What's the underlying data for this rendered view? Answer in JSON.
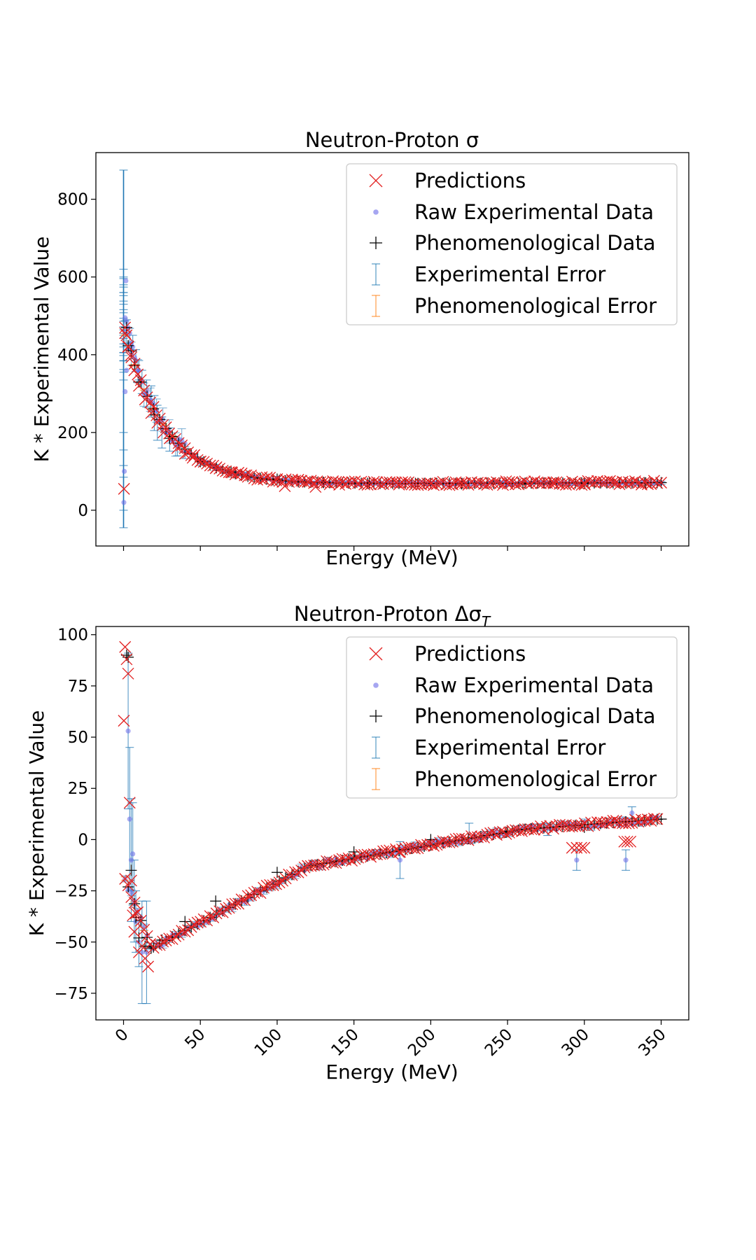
{
  "chart_data": [
    {
      "type": "scatter",
      "title": "Neutron-Proton σ",
      "xlabel": "Energy (MeV)",
      "ylabel": "K * Experimental Value",
      "xlim": [
        -18,
        368
      ],
      "ylim": [
        -92,
        920
      ],
      "yticks": [
        0,
        200,
        400,
        600,
        800
      ],
      "xticks": [
        0,
        50,
        100,
        150,
        200,
        250,
        300,
        350
      ],
      "show_xtick_labels": false,
      "grid": false,
      "legend_position": "top-right",
      "legend": [
        "Predictions",
        "Raw Experimental Data",
        "Phenomenological Data",
        "Experimental Error",
        "Phenomenological Error"
      ],
      "colors": {
        "predictions": "#e32222",
        "raw": "#6a6ae8",
        "phenom": "#000000",
        "exp_error": "#1f77b4",
        "phenom_error": "#ff7f0e"
      },
      "curve": "sigma",
      "series": [
        {
          "name": "Predictions",
          "x": [
            0.3,
            1,
            2,
            3,
            5,
            7,
            10,
            14,
            18,
            22,
            26,
            30,
            35,
            40,
            45,
            50,
            60,
            70,
            80,
            90,
            100,
            105,
            110,
            120,
            125,
            140,
            160,
            180,
            200,
            220,
            250,
            280,
            300,
            320,
            340,
            350
          ],
          "y": [
            55,
            470,
            450,
            420,
            400,
            360,
            320,
            285,
            250,
            225,
            200,
            185,
            160,
            145,
            135,
            125,
            108,
            98,
            90,
            85,
            80,
            62,
            76,
            73,
            60,
            72,
            70,
            69,
            68,
            68,
            68,
            69,
            69,
            70,
            70,
            71
          ]
        },
        {
          "name": "Raw Experimental Data",
          "x": [
            0.2,
            0.5,
            1,
            1,
            1.5,
            2,
            2,
            3,
            4,
            5,
            6,
            8,
            10,
            12,
            15,
            18,
            20,
            22,
            25,
            28,
            32,
            36,
            40,
            50,
            60,
            80,
            100,
            130,
            160,
            200,
            250,
            300,
            350
          ],
          "y": [
            20,
            100,
            305,
            495,
            590,
            485,
            360,
            470,
            455,
            430,
            420,
            385,
            360,
            330,
            300,
            280,
            255,
            230,
            210,
            200,
            180,
            165,
            150,
            125,
            110,
            92,
            82,
            74,
            70,
            68,
            67,
            69,
            70
          ]
        },
        {
          "name": "Phenomenological Data",
          "x": [
            2,
            5,
            10,
            20,
            30,
            50,
            70,
            100,
            130,
            160,
            190,
            220,
            260,
            300,
            340,
            350
          ],
          "y": [
            470,
            410,
            330,
            245,
            185,
            125,
            98,
            80,
            72,
            70,
            69,
            68,
            68,
            69,
            70,
            71
          ]
        },
        {
          "name": "Experimental Error",
          "x": [
            0,
            0,
            0,
            0,
            0,
            0,
            0,
            0,
            2,
            4,
            6,
            8,
            10,
            12,
            15,
            18,
            20,
            22,
            25,
            30,
            35,
            40,
            50,
            60,
            80,
            100,
            150,
            200,
            250,
            300,
            350
          ],
          "y": [
            20,
            100,
            305,
            495,
            600,
            580,
            380,
            360,
            460,
            440,
            420,
            385,
            360,
            330,
            300,
            280,
            250,
            225,
            200,
            182,
            160,
            148,
            125,
            110,
            92,
            82,
            71,
            68,
            67,
            69,
            70
          ],
          "err": [
            65,
            100,
            150,
            380,
            20,
            20,
            25,
            25,
            30,
            28,
            30,
            28,
            25,
            30,
            35,
            40,
            45,
            45,
            40,
            30,
            20,
            15,
            10,
            8,
            6,
            5,
            4,
            4,
            4,
            4,
            4
          ]
        }
      ]
    },
    {
      "type": "scatter",
      "title": "Neutron-Proton Δσ",
      "title_subscript": "T",
      "xlabel": "Energy (MeV)",
      "ylabel": "K * Experimental Value",
      "xlim": [
        -18,
        368
      ],
      "ylim": [
        -88,
        104
      ],
      "yticks": [
        -75,
        -50,
        -25,
        0,
        25,
        50,
        75,
        100
      ],
      "xticks": [
        0,
        50,
        100,
        150,
        200,
        250,
        300,
        350
      ],
      "show_xtick_labels": true,
      "grid": false,
      "legend_position": "top-right",
      "legend": [
        "Predictions",
        "Raw Experimental Data",
        "Phenomenological Data",
        "Experimental Error",
        "Phenomenological Error"
      ],
      "colors": {
        "predictions": "#e32222",
        "raw": "#6a6ae8",
        "phenom": "#000000",
        "exp_error": "#1f77b4",
        "phenom_error": "#ff7f0e"
      },
      "curve": "dsigma",
      "series": [
        {
          "name": "Predictions",
          "x": [
            0.2,
            1,
            2,
            3,
            4,
            5,
            6,
            7,
            8,
            10,
            12,
            14,
            16,
            292,
            295,
            298,
            300,
            326,
            328,
            330,
            180
          ],
          "y": [
            58,
            94,
            88,
            81,
            18,
            -20,
            -37,
            -45,
            -36,
            -55,
            -52,
            -58,
            -62,
            -4,
            -4,
            -4,
            -4,
            -1,
            -1,
            -1,
            -6
          ]
        },
        {
          "name": "Raw Experimental Data",
          "x": [
            3,
            4,
            5,
            6,
            7,
            8,
            10,
            12,
            15,
            180,
            295,
            327,
            331
          ],
          "y": [
            53,
            10,
            -10,
            -7,
            -30,
            -40,
            -50,
            -55,
            -55,
            -10,
            -10,
            -10,
            13
          ]
        },
        {
          "name": "Phenomenological Data",
          "x": [
            2,
            3,
            5,
            8,
            10,
            14,
            18,
            25,
            40,
            60,
            100,
            150,
            200,
            250,
            300,
            350
          ],
          "y": [
            90,
            89,
            -15,
            -38,
            -48,
            -52,
            -53,
            -49,
            -40,
            -30,
            -16,
            -6,
            0,
            4,
            6,
            10
          ]
        },
        {
          "name": "Experimental Error",
          "x": [
            3,
            4,
            5,
            6,
            7,
            8,
            10,
            12,
            15,
            180,
            225,
            276,
            295,
            327,
            331
          ],
          "y": [
            53,
            10,
            -10,
            -7,
            -30,
            -40,
            -50,
            -55,
            -55,
            -10,
            3,
            5,
            -10,
            -10,
            13
          ],
          "err": [
            38,
            35,
            30,
            25,
            20,
            15,
            12,
            25,
            25,
            9,
            5,
            3,
            5,
            5,
            3
          ]
        }
      ]
    }
  ]
}
